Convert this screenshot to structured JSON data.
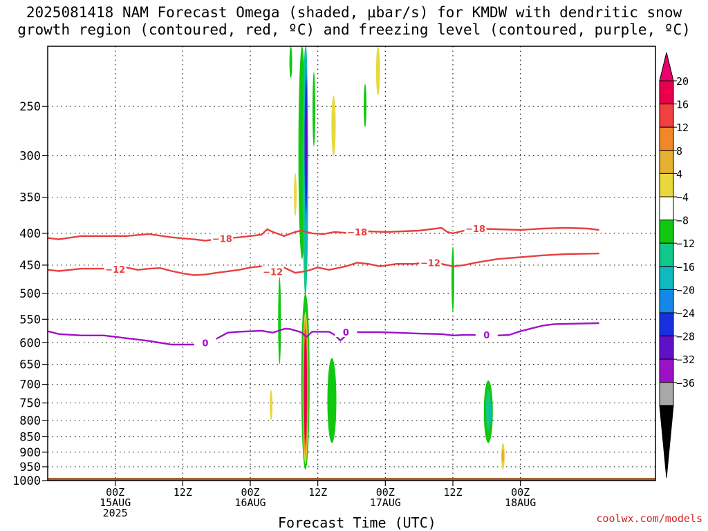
{
  "title_line1": "2025081418 NAM Forecast Omega (shaded, μbar/s) for KMDW with dendritic snow",
  "title_line2": "growth region (contoured, red, ºC) and freezing level (contoured, purple, ºC)",
  "watermark": "coolwx.com/models",
  "chart_data": {
    "type": "heatmap",
    "xlabel": "Forecast Time (UTC)",
    "ylabel": "",
    "xlim": [
      -12,
      96
    ],
    "ylim": [
      1000,
      200
    ],
    "y_ticks": [
      250,
      300,
      350,
      400,
      450,
      500,
      550,
      600,
      650,
      700,
      750,
      800,
      850,
      900,
      950,
      1000
    ],
    "x_ticks": [
      {
        "hour": 0,
        "line1": "00Z",
        "line2": "15AUG",
        "line3": "2025"
      },
      {
        "hour": 12,
        "line1": "12Z",
        "line2": "",
        "line3": ""
      },
      {
        "hour": 24,
        "line1": "00Z",
        "line2": "16AUG",
        "line3": ""
      },
      {
        "hour": 36,
        "line1": "12Z",
        "line2": "",
        "line3": ""
      },
      {
        "hour": 48,
        "line1": "00Z",
        "line2": "17AUG",
        "line3": ""
      },
      {
        "hour": 60,
        "line1": "12Z",
        "line2": "",
        "line3": ""
      },
      {
        "hour": 72,
        "line1": "00Z",
        "line2": "18AUG",
        "line3": ""
      }
    ],
    "grid": true,
    "colorbar": {
      "labels": [
        "20",
        "16",
        "12",
        "8",
        "4",
        "−4",
        "−8",
        "−12",
        "−16",
        "−20",
        "−24",
        "−28",
        "−32",
        "−36"
      ],
      "colors": [
        "#e8004c",
        "#f04040",
        "#f08828",
        "#e8b030",
        "#e8d83c",
        "#ffffff",
        "#10c810",
        "#10c888",
        "#10b8c0",
        "#1488e8",
        "#1830e0",
        "#6010c8",
        "#9c10c8",
        "#a8a8a8"
      ],
      "top_color": "#e8006c",
      "bottom_color": "#000000"
    },
    "omega_regions": [
      {
        "value": -8,
        "color": "#10c810",
        "cx": 33.2,
        "p1": 200,
        "p2": 440,
        "w": 1.3
      },
      {
        "value": -12,
        "color": "#10c888",
        "cx": 33.8,
        "p1": 200,
        "p2": 505,
        "w": 1.0
      },
      {
        "value": -16,
        "color": "#10b8c0",
        "cx": 33.9,
        "p1": 200,
        "p2": 450,
        "w": 0.7
      },
      {
        "value": -20,
        "color": "#1488e8",
        "cx": 33.9,
        "p1": 215,
        "p2": 385,
        "w": 0.45
      },
      {
        "value": -24,
        "color": "#1830e0",
        "cx": 33.9,
        "p1": 225,
        "p2": 370,
        "w": 0.3
      },
      {
        "value": -28,
        "color": "#6010c8",
        "cx": 33.9,
        "p1": 250,
        "p2": 330,
        "w": 0.2
      },
      {
        "value": -8,
        "color": "#10c810",
        "cx": 35.3,
        "p1": 220,
        "p2": 290,
        "w": 0.3
      },
      {
        "value": 4,
        "color": "#e8d83c",
        "cx": 32.0,
        "p1": 320,
        "p2": 375,
        "w": 0.35
      },
      {
        "value": 4,
        "color": "#e8d83c",
        "cx": 38.8,
        "p1": 240,
        "p2": 300,
        "w": 0.75
      },
      {
        "value": -8,
        "color": "#10c810",
        "cx": 44.4,
        "p1": 230,
        "p2": 270,
        "w": 0.22
      },
      {
        "value": 4,
        "color": "#e8d83c",
        "cx": 46.7,
        "p1": 200,
        "p2": 240,
        "w": 0.7
      },
      {
        "value": -8,
        "color": "#10c810",
        "cx": 31.2,
        "p1": 200,
        "p2": 225,
        "w": 0.35
      },
      {
        "value": -8,
        "color": "#10c810",
        "cx": 60.0,
        "p1": 420,
        "p2": 535,
        "w": 0.28
      },
      {
        "value": -8,
        "color": "#10c810",
        "cx": 29.2,
        "p1": 470,
        "p2": 650,
        "w": 0.5
      },
      {
        "value": 4,
        "color": "#e8d83c",
        "cx": 27.7,
        "p1": 715,
        "p2": 800,
        "w": 0.4
      },
      {
        "value": -8,
        "color": "#10c810",
        "cx": 33.8,
        "p1": 500,
        "p2": 960,
        "w": 1.5
      },
      {
        "value": 4,
        "color": "#e8d83c",
        "cx": 33.8,
        "p1": 535,
        "p2": 940,
        "w": 1.0
      },
      {
        "value": 8,
        "color": "#e8b030",
        "cx": 33.8,
        "p1": 545,
        "p2": 920,
        "w": 0.85
      },
      {
        "value": 12,
        "color": "#f08828",
        "cx": 33.8,
        "p1": 555,
        "p2": 900,
        "w": 0.75
      },
      {
        "value": 16,
        "color": "#f04040",
        "cx": 33.8,
        "p1": 570,
        "p2": 880,
        "w": 0.65
      },
      {
        "value": 20,
        "color": "#e8004c",
        "cx": 33.8,
        "p1": 590,
        "p2": 860,
        "w": 0.55
      },
      {
        "value": -8,
        "color": "#10c810",
        "cx": 38.5,
        "p1": 635,
        "p2": 870,
        "w": 1.6
      },
      {
        "value": -8,
        "color": "#10c810",
        "cx": 66.3,
        "p1": 690,
        "p2": 870,
        "w": 1.6
      },
      {
        "value": -12,
        "color": "#10c888",
        "cx": 66.3,
        "p1": 715,
        "p2": 830,
        "w": 0.8
      },
      {
        "value": -16,
        "color": "#10b8c0",
        "cx": 66.6,
        "p1": 745,
        "p2": 810,
        "w": 0.45
      },
      {
        "value": 4,
        "color": "#e8d83c",
        "cx": 68.9,
        "p1": 870,
        "p2": 960,
        "w": 0.6
      },
      {
        "value": 8,
        "color": "#e8b030",
        "cx": 68.9,
        "p1": 890,
        "p2": 935,
        "w": 0.3
      }
    ],
    "contours": [
      {
        "label": "-18",
        "color": "#e84040",
        "points": [
          [
            -12,
            407
          ],
          [
            -10,
            409
          ],
          [
            -6,
            404
          ],
          [
            -2,
            404
          ],
          [
            2,
            404
          ],
          [
            6,
            401
          ],
          [
            10,
            406
          ],
          [
            14,
            409
          ],
          [
            16,
            411
          ],
          [
            19,
            408
          ],
          [
            22,
            406
          ],
          [
            24,
            404
          ],
          [
            26,
            402
          ],
          [
            27,
            394
          ],
          [
            28,
            398
          ],
          [
            30,
            404
          ],
          [
            32,
            398
          ],
          [
            33,
            396
          ],
          [
            35,
            400
          ],
          [
            37,
            401
          ],
          [
            39,
            398
          ],
          [
            42,
            400
          ],
          [
            45,
            397
          ],
          [
            48,
            398
          ],
          [
            51,
            397
          ],
          [
            54,
            396
          ],
          [
            57,
            393
          ],
          [
            58,
            392
          ],
          [
            59,
            398
          ],
          [
            60,
            400
          ],
          [
            62,
            396
          ],
          [
            64,
            393
          ],
          [
            68,
            394
          ],
          [
            72,
            395
          ],
          [
            76,
            393
          ],
          [
            80,
            392
          ],
          [
            84,
            393
          ],
          [
            86,
            395
          ]
        ],
        "labels_at": [
          [
            19,
            408
          ],
          [
            43,
            398
          ],
          [
            64,
            393
          ]
        ]
      },
      {
        "label": "-12",
        "color": "#e84040",
        "points": [
          [
            -12,
            458
          ],
          [
            -10,
            460
          ],
          [
            -6,
            456
          ],
          [
            -2,
            456
          ],
          [
            2,
            454
          ],
          [
            4,
            458
          ],
          [
            6,
            456
          ],
          [
            8,
            455
          ],
          [
            10,
            460
          ],
          [
            12,
            464
          ],
          [
            14,
            467
          ],
          [
            16,
            466
          ],
          [
            18,
            463
          ],
          [
            22,
            458
          ],
          [
            24,
            454
          ],
          [
            26,
            452
          ],
          [
            28,
            460
          ],
          [
            30,
            454
          ],
          [
            32,
            463
          ],
          [
            34,
            460
          ],
          [
            36,
            454
          ],
          [
            38,
            458
          ],
          [
            41,
            452
          ],
          [
            43,
            446
          ],
          [
            45,
            448
          ],
          [
            47,
            452
          ],
          [
            50,
            448
          ],
          [
            53,
            448
          ],
          [
            56,
            445
          ],
          [
            58,
            448
          ],
          [
            60,
            452
          ],
          [
            62,
            450
          ],
          [
            64,
            446
          ],
          [
            68,
            440
          ],
          [
            72,
            437
          ],
          [
            76,
            434
          ],
          [
            80,
            432
          ],
          [
            86,
            431
          ]
        ],
        "labels_at": [
          [
            0,
            457
          ],
          [
            28,
            461
          ],
          [
            56,
            446
          ]
        ]
      },
      {
        "label": "0",
        "color": "#a010c8",
        "points": [
          [
            -12,
            575
          ],
          [
            -10,
            581
          ],
          [
            -6,
            584
          ],
          [
            -2,
            584
          ],
          [
            2,
            590
          ],
          [
            6,
            596
          ],
          [
            8,
            600
          ],
          [
            10,
            604
          ],
          [
            14,
            604
          ],
          [
            17,
            600
          ],
          [
            18,
            591
          ],
          [
            20,
            578
          ],
          [
            22,
            576
          ],
          [
            26,
            574
          ],
          [
            28,
            578
          ],
          [
            30,
            570
          ],
          [
            31,
            570
          ],
          [
            33,
            577
          ],
          [
            34,
            587
          ],
          [
            35,
            576
          ],
          [
            38,
            576
          ],
          [
            39,
            583
          ],
          [
            40,
            595
          ],
          [
            41,
            584
          ],
          [
            43,
            577
          ],
          [
            47,
            577
          ],
          [
            50,
            578
          ],
          [
            54,
            580
          ],
          [
            58,
            581
          ],
          [
            60,
            584
          ],
          [
            62,
            583
          ],
          [
            66,
            583
          ],
          [
            68,
            584
          ],
          [
            70,
            583
          ],
          [
            72,
            575
          ],
          [
            74,
            569
          ],
          [
            76,
            563
          ],
          [
            78,
            560
          ],
          [
            86,
            558
          ]
        ],
        "labels_at": [
          [
            16,
            600
          ],
          [
            41,
            577
          ],
          [
            66,
            583
          ]
        ]
      }
    ],
    "surface": {
      "pressure": 990,
      "color": "#a45a2e"
    }
  }
}
